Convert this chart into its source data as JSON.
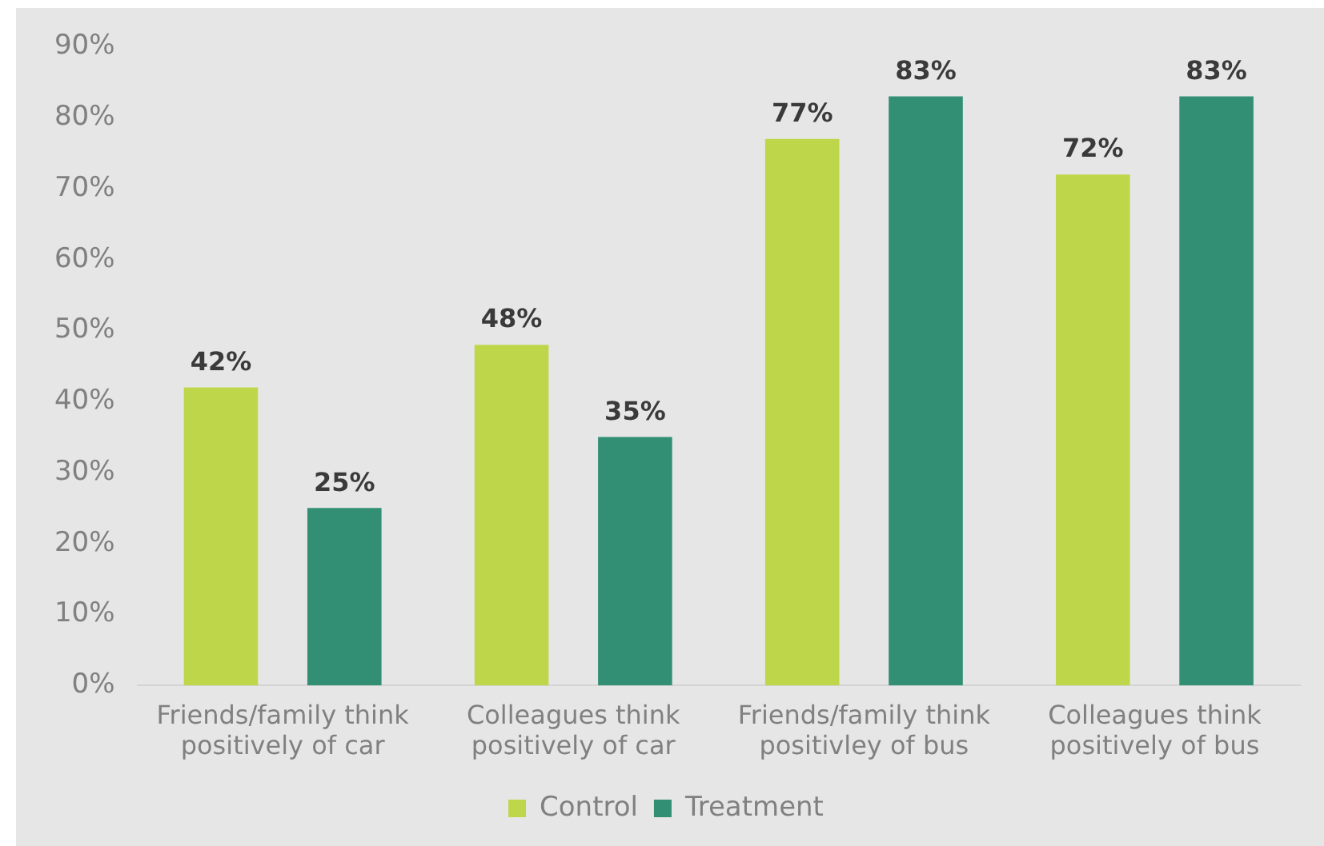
{
  "chart_data": {
    "type": "bar",
    "categories": [
      "Friends/family think positively of car",
      "Colleagues think positively of car",
      "Friends/family think positivley of bus",
      "Colleagues think positively of bus"
    ],
    "series": [
      {
        "name": "Control",
        "color": "#bed74a",
        "values": [
          42,
          48,
          77,
          72
        ],
        "value_labels": [
          "42%",
          "48%",
          "77%",
          "72%"
        ]
      },
      {
        "name": "Treatment",
        "color": "#338f74",
        "values": [
          25,
          35,
          83,
          83
        ],
        "value_labels": [
          "25%",
          "35%",
          "83%",
          "83%"
        ]
      }
    ],
    "ylim": [
      0,
      90
    ],
    "yticks": [
      {
        "value": 0,
        "label": "0%"
      },
      {
        "value": 10,
        "label": "10%"
      },
      {
        "value": 20,
        "label": "20%"
      },
      {
        "value": 30,
        "label": "30%"
      },
      {
        "value": 40,
        "label": "40%"
      },
      {
        "value": 50,
        "label": "50%"
      },
      {
        "value": 60,
        "label": "60%"
      },
      {
        "value": 70,
        "label": "70%"
      },
      {
        "value": 80,
        "label": "80%"
      },
      {
        "value": 90,
        "label": "90%"
      }
    ],
    "grid": false,
    "legend": "bottom"
  }
}
